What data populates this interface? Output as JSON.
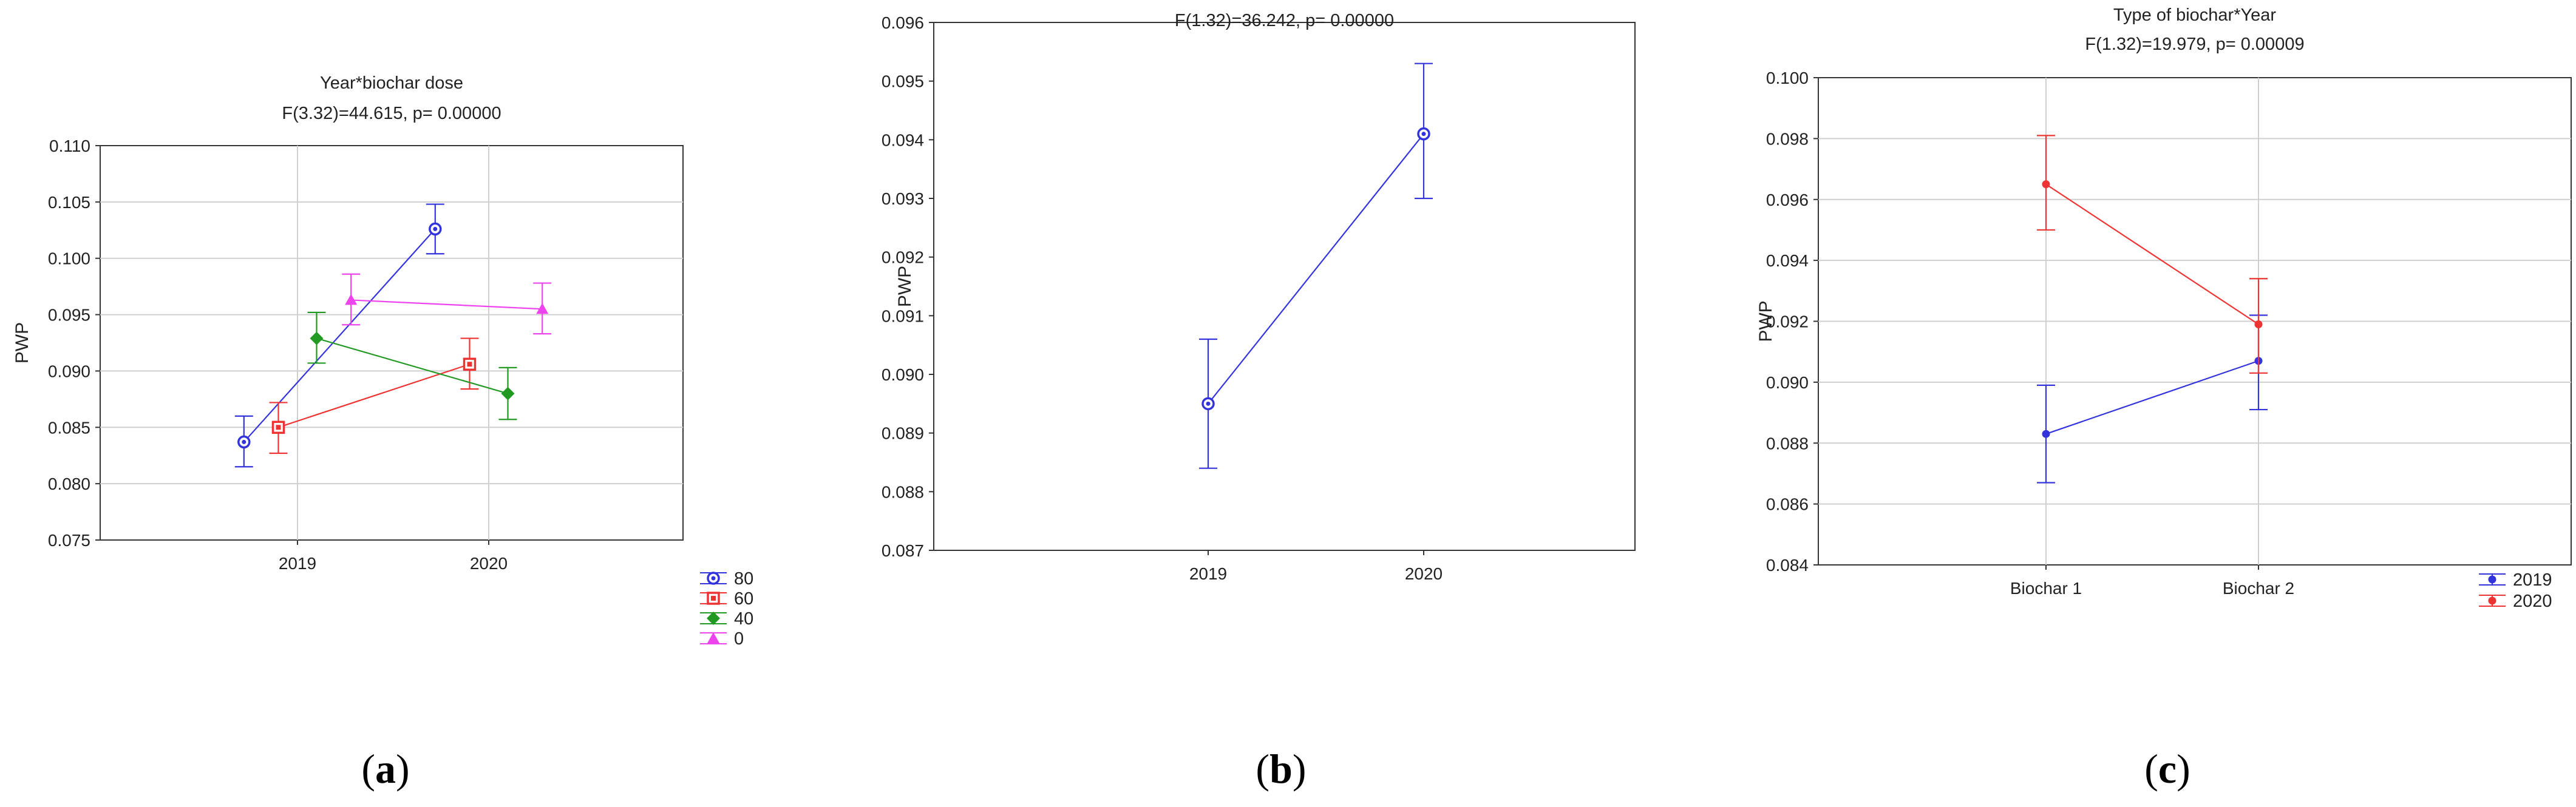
{
  "chart_data": [
    {
      "type": "line",
      "panel_label": "a",
      "title": "Year*biochar dose",
      "subtitle": "F(3.32)=44.615, p= 0.00000",
      "xlabel": "",
      "ylabel": "PWP",
      "categories": [
        "2019",
        "2020"
      ],
      "ylim": [
        0.075,
        0.11
      ],
      "yticks": [
        "0.075",
        "0.080",
        "0.085",
        "0.090",
        "0.095",
        "0.100",
        "0.105",
        "0.110"
      ],
      "grid": true,
      "legend_position": "bottom-right, outside",
      "series": [
        {
          "name": "80",
          "color": "#3333dd",
          "marker": "circle",
          "values": [
            0.0837,
            0.1026
          ],
          "ci_low": [
            0.0815,
            0.1004
          ],
          "ci_high": [
            0.086,
            0.1048
          ]
        },
        {
          "name": "60",
          "color": "#ee3333",
          "marker": "square",
          "values": [
            0.085,
            0.0906
          ],
          "ci_low": [
            0.0827,
            0.0884
          ],
          "ci_high": [
            0.0872,
            0.0929
          ]
        },
        {
          "name": "40",
          "color": "#229922",
          "marker": "diamond",
          "values": [
            0.0929,
            0.088
          ],
          "ci_low": [
            0.0907,
            0.0857
          ],
          "ci_high": [
            0.0952,
            0.0903
          ]
        },
        {
          "name": "0",
          "color": "#ee44ee",
          "marker": "triangle",
          "values": [
            0.0963,
            0.0955
          ],
          "ci_low": [
            0.0941,
            0.0933
          ],
          "ci_high": [
            0.0986,
            0.0978
          ]
        }
      ]
    },
    {
      "type": "line",
      "panel_label": "b",
      "title": "",
      "subtitle": "F(1.32)=36.242, p= 0.00000",
      "xlabel": "",
      "ylabel": "PWP",
      "categories": [
        "2019",
        "2020"
      ],
      "ylim": [
        0.087,
        0.096
      ],
      "yticks": [
        "0.087",
        "0.088",
        "0.089",
        "0.090",
        "0.091",
        "0.092",
        "0.093",
        "0.094",
        "0.095",
        "0.096"
      ],
      "grid": false,
      "series": [
        {
          "color": "#3333dd",
          "marker": "circle",
          "values": [
            0.0895,
            0.0941
          ],
          "ci_low": [
            0.0884,
            0.093
          ],
          "ci_high": [
            0.0906,
            0.0953
          ]
        }
      ]
    },
    {
      "type": "line",
      "panel_label": "c",
      "title": "Type of biochar*Year",
      "subtitle": "F(1.32)=19.979, p= 0.00009",
      "xlabel": "",
      "ylabel": "PWP",
      "categories": [
        "Biochar 1",
        "Biochar 2"
      ],
      "ylim": [
        0.084,
        0.1
      ],
      "yticks": [
        "0.084",
        "0.086",
        "0.088",
        "0.090",
        "0.092",
        "0.094",
        "0.096",
        "0.098",
        "0.100"
      ],
      "grid": true,
      "legend_position": "bottom-right, outside",
      "series": [
        {
          "name": "2019",
          "color": "#3333dd",
          "marker": "dot",
          "values": [
            0.0883,
            0.0907
          ],
          "ci_low": [
            0.0867,
            0.0891
          ],
          "ci_high": [
            0.0899,
            0.0922
          ]
        },
        {
          "name": "2020",
          "color": "#ee3333",
          "marker": "dot",
          "values": [
            0.0965,
            0.0919
          ],
          "ci_low": [
            0.095,
            0.0903
          ],
          "ci_high": [
            0.0981,
            0.0934
          ]
        }
      ]
    }
  ]
}
